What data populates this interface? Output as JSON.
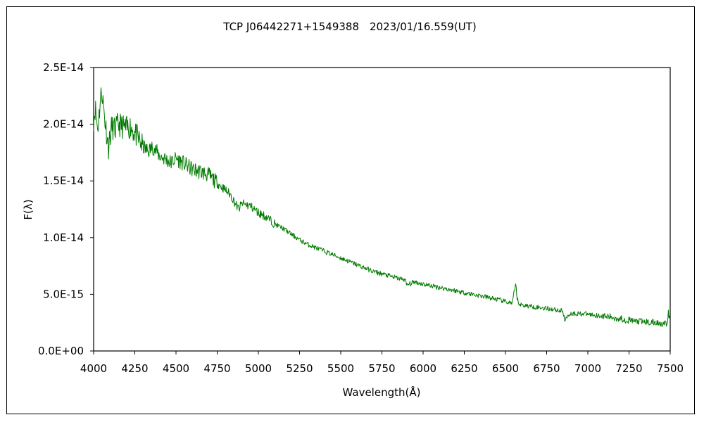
{
  "chart_data": {
    "type": "line",
    "title": "TCP J06442271+1549388　2023/01/16.559(UT)",
    "xlabel": "Wavelength(Å)",
    "ylabel": "F(λ)",
    "xlim": [
      4000,
      7500
    ],
    "ylim": [
      0,
      2.5e-14
    ],
    "x_ticks": [
      4000,
      4250,
      4500,
      4750,
      5000,
      5250,
      5500,
      5750,
      6000,
      6250,
      6500,
      6750,
      7000,
      7250,
      7500
    ],
    "x_tick_labels": [
      "4000",
      "4250",
      "4500",
      "4750",
      "5000",
      "5250",
      "5500",
      "5750",
      "6000",
      "6250",
      "6500",
      "6750",
      "7000",
      "7250",
      "7500"
    ],
    "y_ticks": [
      0,
      5e-15,
      1e-14,
      1.5e-14,
      2e-14,
      2.5e-14
    ],
    "y_tick_labels": [
      "0.0E+00",
      "5.0E-15",
      "1.0E-14",
      "1.5E-14",
      "2.0E-14",
      "2.5E-14"
    ],
    "grid": false,
    "legend": "none",
    "series": [
      {
        "color": "#007a00",
        "x": [
          4000,
          4010,
          4025,
          4040,
          4050,
          4070,
          4090,
          4110,
          4130,
          4150,
          4175,
          4200,
          4225,
          4250,
          4280,
          4300,
          4330,
          4360,
          4400,
          4430,
          4470,
          4500,
          4550,
          4600,
          4650,
          4700,
          4750,
          4800,
          4830,
          4860,
          4880,
          4900,
          4950,
          5000,
          5050,
          5100,
          5150,
          5200,
          5250,
          5300,
          5350,
          5400,
          5450,
          5500,
          5550,
          5600,
          5650,
          5700,
          5750,
          5800,
          5850,
          5890,
          5900,
          5950,
          6000,
          6050,
          6100,
          6150,
          6200,
          6250,
          6300,
          6350,
          6400,
          6450,
          6500,
          6540,
          6555,
          6563,
          6570,
          6585,
          6600,
          6650,
          6700,
          6750,
          6800,
          6850,
          6860,
          6870,
          6880,
          6900,
          6950,
          7000,
          7050,
          7100,
          7150,
          7200,
          7250,
          7300,
          7350,
          7400,
          7450,
          7480,
          7490,
          7500
        ],
        "y": [
          2.05e-14,
          2.15e-14,
          1.95e-14,
          2.2e-14,
          2.3e-14,
          2.02e-14,
          1.8e-14,
          1.98e-14,
          1.95e-14,
          2e-14,
          1.98e-14,
          1.96e-14,
          1.98e-14,
          1.92e-14,
          1.85e-14,
          1.8e-14,
          1.76e-14,
          1.8e-14,
          1.72e-14,
          1.7e-14,
          1.66e-14,
          1.7e-14,
          1.65e-14,
          1.6e-14,
          1.58e-14,
          1.55e-14,
          1.48e-14,
          1.42e-14,
          1.38e-14,
          1.3e-14,
          1.25e-14,
          1.3e-14,
          1.28e-14,
          1.22e-14,
          1.18e-14,
          1.12e-14,
          1.08e-14,
          1.03e-14,
          9.8e-15,
          9.4e-15,
          9.1e-15,
          8.8e-15,
          8.5e-15,
          8.2e-15,
          7.9e-15,
          7.6e-15,
          7.3e-15,
          7e-15,
          6.8e-15,
          6.6e-15,
          6.4e-15,
          6.3e-15,
          5.8e-15,
          6.1e-15,
          5.9e-15,
          5.75e-15,
          5.6e-15,
          5.45e-15,
          5.3e-15,
          5.15e-15,
          5e-15,
          4.85e-15,
          4.7e-15,
          4.55e-15,
          4.35e-15,
          4.2e-15,
          5.3e-15,
          5.9e-15,
          4.6e-15,
          4.1e-15,
          4.05e-15,
          3.95e-15,
          3.85e-15,
          3.75e-15,
          3.65e-15,
          3.5e-15,
          2.6e-15,
          2.9e-15,
          3.2e-15,
          3.3e-15,
          3.3e-15,
          3.25e-15,
          3.15e-15,
          3.05e-15,
          2.95e-15,
          2.85e-15,
          2.7e-15,
          2.6e-15,
          2.55e-15,
          2.5e-15,
          2.45e-15,
          2.3e-15,
          3.4e-15,
          2.4e-15
        ]
      }
    ]
  }
}
